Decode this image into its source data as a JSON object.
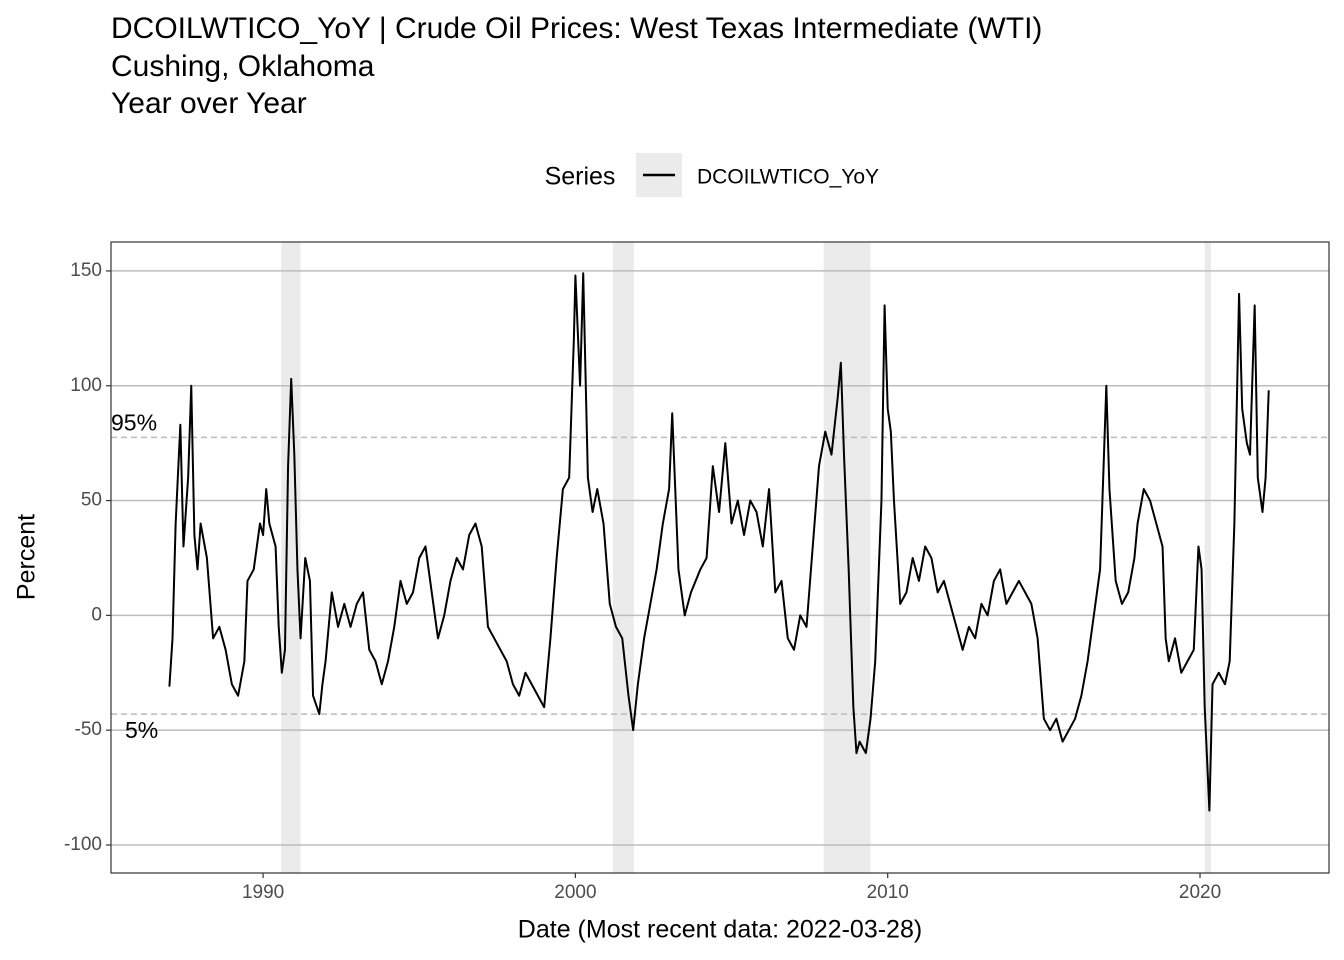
{
  "chart_data": {
    "type": "line",
    "title": [
      "DCOILWTICO_YoY | Crude Oil Prices: West Texas Intermediate (WTI)",
      "Cushing, Oklahoma",
      "Year over Year"
    ],
    "legend_title": "Series",
    "x_label": "Date (Most recent data: 2022-03-28)",
    "y_label": "Percent",
    "xlim": [
      1985.13,
      2024.13
    ],
    "xticks": [
      1990,
      2000,
      2010,
      2020
    ],
    "ylim": [
      -112.2,
      162.6
    ],
    "yticks": [
      -100,
      -50,
      0,
      50,
      100,
      150
    ],
    "grid": true,
    "shaded_periods": [
      [
        1990.58,
        1991.2
      ],
      [
        2001.2,
        2001.87
      ],
      [
        2007.95,
        2009.45
      ],
      [
        2020.15,
        2020.35
      ]
    ],
    "reference_lines": [
      {
        "value": 77.5,
        "label": "95%"
      },
      {
        "value": -43,
        "label": "5%"
      }
    ],
    "x": [
      1987.0,
      1987.1,
      1987.2,
      1987.35,
      1987.45,
      1987.6,
      1987.7,
      1987.8,
      1987.9,
      1988.0,
      1988.2,
      1988.4,
      1988.6,
      1988.8,
      1989.0,
      1989.2,
      1989.4,
      1989.5,
      1989.7,
      1989.9,
      1990.0,
      1990.1,
      1990.2,
      1990.4,
      1990.5,
      1990.6,
      1990.7,
      1990.8,
      1990.9,
      1991.0,
      1991.1,
      1991.2,
      1991.35,
      1991.5,
      1991.6,
      1991.8,
      1991.9,
      1992.0,
      1992.2,
      1992.4,
      1992.6,
      1992.8,
      1993.0,
      1993.2,
      1993.4,
      1993.6,
      1993.8,
      1994.0,
      1994.2,
      1994.4,
      1994.6,
      1994.8,
      1995.0,
      1995.2,
      1995.4,
      1995.6,
      1995.8,
      1996.0,
      1996.2,
      1996.4,
      1996.6,
      1996.8,
      1997.0,
      1997.2,
      1997.4,
      1997.6,
      1997.8,
      1998.0,
      1998.2,
      1998.4,
      1998.6,
      1998.8,
      1999.0,
      1999.2,
      1999.4,
      1999.6,
      1999.8,
      1999.95,
      2000.0,
      2000.15,
      2000.25,
      2000.4,
      2000.55,
      2000.7,
      2000.9,
      2001.1,
      2001.3,
      2001.5,
      2001.7,
      2001.85,
      2002.0,
      2002.2,
      2002.4,
      2002.6,
      2002.8,
      2003.0,
      2003.1,
      2003.3,
      2003.5,
      2003.7,
      2004.0,
      2004.2,
      2004.4,
      2004.6,
      2004.8,
      2005.0,
      2005.2,
      2005.4,
      2005.6,
      2005.8,
      2006.0,
      2006.2,
      2006.4,
      2006.6,
      2006.8,
      2007.0,
      2007.2,
      2007.4,
      2007.6,
      2007.8,
      2008.0,
      2008.2,
      2008.4,
      2008.5,
      2008.6,
      2008.75,
      2008.9,
      2009.0,
      2009.1,
      2009.3,
      2009.45,
      2009.6,
      2009.8,
      2009.9,
      2010.0,
      2010.1,
      2010.2,
      2010.4,
      2010.6,
      2010.8,
      2011.0,
      2011.2,
      2011.4,
      2011.6,
      2011.8,
      2012.0,
      2012.2,
      2012.4,
      2012.6,
      2012.8,
      2013.0,
      2013.2,
      2013.4,
      2013.6,
      2013.8,
      2014.0,
      2014.2,
      2014.4,
      2014.6,
      2014.8,
      2015.0,
      2015.2,
      2015.4,
      2015.6,
      2015.8,
      2016.0,
      2016.2,
      2016.4,
      2016.6,
      2016.8,
      2017.0,
      2017.1,
      2017.3,
      2017.5,
      2017.7,
      2017.9,
      2018.0,
      2018.2,
      2018.4,
      2018.6,
      2018.8,
      2018.9,
      2019.0,
      2019.2,
      2019.4,
      2019.6,
      2019.8,
      2019.95,
      2020.05,
      2020.15,
      2020.3,
      2020.4,
      2020.6,
      2020.8,
      2020.95,
      2021.1,
      2021.25,
      2021.35,
      2021.5,
      2021.6,
      2021.75,
      2021.85,
      2022.0,
      2022.1,
      2022.2
    ],
    "series": [
      {
        "name": "DCOILWTICO_YoY",
        "color": "#000000",
        "values": [
          -31,
          -10,
          40,
          83,
          30,
          60,
          100,
          35,
          20,
          40,
          25,
          -10,
          -5,
          -15,
          -30,
          -35,
          -20,
          15,
          20,
          40,
          35,
          55,
          40,
          30,
          -5,
          -25,
          -15,
          65,
          103,
          70,
          20,
          -10,
          25,
          15,
          -35,
          -43,
          -30,
          -20,
          10,
          -5,
          5,
          -5,
          5,
          10,
          -15,
          -20,
          -30,
          -20,
          -5,
          15,
          5,
          10,
          25,
          30,
          10,
          -10,
          0,
          15,
          25,
          20,
          35,
          40,
          30,
          -5,
          -10,
          -15,
          -20,
          -30,
          -35,
          -25,
          -30,
          -35,
          -40,
          -10,
          25,
          55,
          60,
          120,
          148,
          100,
          149,
          60,
          45,
          55,
          40,
          5,
          -5,
          -10,
          -35,
          -50,
          -30,
          -10,
          5,
          20,
          40,
          55,
          88,
          20,
          0,
          10,
          20,
          25,
          65,
          45,
          75,
          40,
          50,
          35,
          50,
          45,
          30,
          55,
          10,
          15,
          -10,
          -15,
          0,
          -5,
          30,
          65,
          80,
          70,
          95,
          110,
          70,
          20,
          -40,
          -60,
          -55,
          -60,
          -45,
          -20,
          50,
          135,
          90,
          80,
          50,
          5,
          10,
          25,
          15,
          30,
          25,
          10,
          15,
          5,
          -5,
          -15,
          -5,
          -10,
          5,
          0,
          15,
          20,
          5,
          10,
          15,
          10,
          5,
          -10,
          -45,
          -50,
          -45,
          -55,
          -50,
          -45,
          -35,
          -20,
          0,
          20,
          100,
          55,
          15,
          5,
          10,
          25,
          40,
          55,
          50,
          40,
          30,
          -10,
          -20,
          -10,
          -25,
          -20,
          -15,
          30,
          20,
          -40,
          -85,
          -30,
          -25,
          -30,
          -20,
          40,
          140,
          90,
          75,
          70,
          135,
          60,
          45,
          60,
          98
        ]
      }
    ]
  }
}
